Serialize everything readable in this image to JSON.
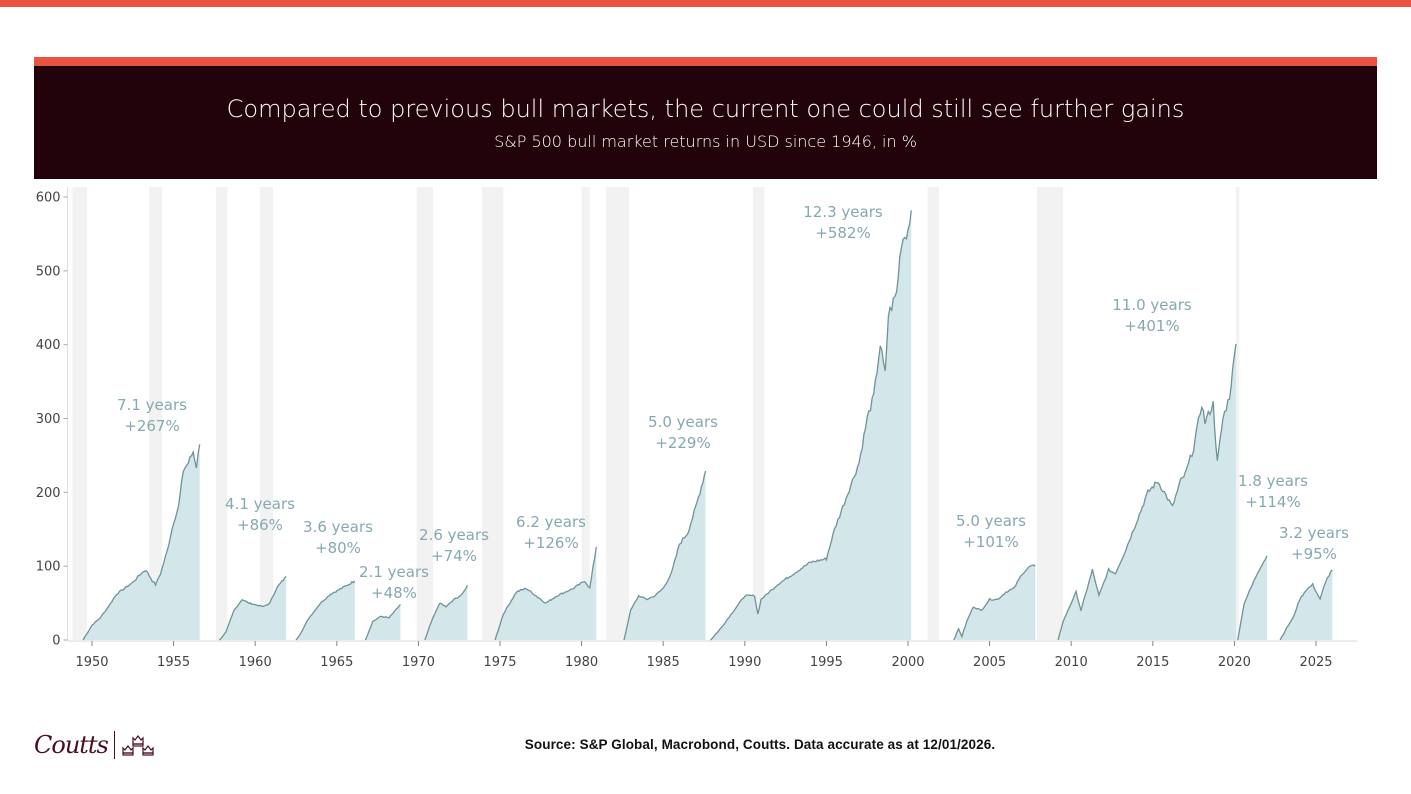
{
  "header": {
    "title": "Compared to previous bull markets, the current one could still see further gains",
    "subtitle": "S&P 500 bull market returns in USD since 1946, in %"
  },
  "footer": {
    "source": "Source: S&P Global, Macrobond, Coutts. Data accurate as at 12/01/2026.",
    "logo_text": "Coutts"
  },
  "colors": {
    "accent_red": "#e8543f",
    "header_bg": "#22030b",
    "area_fill": "#d3e6ea",
    "line": "#6e9399",
    "recession_band": "#f2f2f2",
    "annotation": "#86a8b0",
    "logo": "#4a0f1f"
  },
  "chart_data": {
    "type": "area",
    "title": "Compared to previous bull markets, the current one could still see further gains",
    "subtitle": "S&P 500 bull market returns in USD since 1946, in %",
    "xlabel": "",
    "ylabel": "",
    "xlim": [
      1948.5,
      2027.5
    ],
    "ylim": [
      0,
      620
    ],
    "x_ticks": [
      "1950",
      "1955",
      "1960",
      "1965",
      "1970",
      "1975",
      "1980",
      "1985",
      "1990",
      "1995",
      "2000",
      "2005",
      "2010",
      "2015",
      "2020",
      "2025"
    ],
    "y_ticks": [
      "0",
      "100",
      "200",
      "300",
      "400",
      "500",
      "600"
    ],
    "grid": false,
    "shaded_periods": [
      [
        1948.8,
        1949.7
      ],
      [
        1953.5,
        1954.3
      ],
      [
        1957.6,
        1958.3
      ],
      [
        1960.3,
        1961.1
      ],
      [
        1969.9,
        1970.9
      ],
      [
        1973.9,
        1975.2
      ],
      [
        1980.0,
        1980.5
      ],
      [
        1981.5,
        1982.9
      ],
      [
        1990.5,
        1991.2
      ],
      [
        2001.2,
        2001.9
      ],
      [
        2007.9,
        2009.5
      ],
      [
        2020.1,
        2020.3
      ]
    ],
    "series": [
      {
        "label": "7.1 years",
        "gain": "+267%",
        "points": [
          [
            1949.45,
            0
          ],
          [
            1950,
            20
          ],
          [
            1950.5,
            30
          ],
          [
            1951,
            45
          ],
          [
            1951.5,
            62
          ],
          [
            1952,
            70
          ],
          [
            1952.5,
            78
          ],
          [
            1953,
            90
          ],
          [
            1953.3,
            95
          ],
          [
            1953.7,
            80
          ],
          [
            1953.9,
            75
          ],
          [
            1954.2,
            90
          ],
          [
            1954.6,
            120
          ],
          [
            1955,
            160
          ],
          [
            1955.3,
            180
          ],
          [
            1955.6,
            230
          ],
          [
            1955.9,
            240
          ],
          [
            1956.2,
            255
          ],
          [
            1956.4,
            235
          ],
          [
            1956.6,
            265
          ]
        ]
      },
      {
        "label": "4.1 years",
        "gain": "+86%",
        "points": [
          [
            1957.8,
            0
          ],
          [
            1958.2,
            10
          ],
          [
            1958.7,
            40
          ],
          [
            1959.2,
            55
          ],
          [
            1959.6,
            50
          ],
          [
            1960,
            48
          ],
          [
            1960.5,
            45
          ],
          [
            1960.9,
            50
          ],
          [
            1961.3,
            70
          ],
          [
            1961.9,
            86
          ]
        ]
      },
      {
        "label": "3.6 years",
        "gain": "+80%",
        "points": [
          [
            1962.5,
            0
          ],
          [
            1962.8,
            10
          ],
          [
            1963.3,
            30
          ],
          [
            1964,
            50
          ],
          [
            1964.6,
            62
          ],
          [
            1965.3,
            70
          ],
          [
            1966.1,
            80
          ]
        ]
      },
      {
        "label": "2.1 years",
        "gain": "+48%",
        "points": [
          [
            1966.75,
            0
          ],
          [
            1967.2,
            25
          ],
          [
            1967.7,
            32
          ],
          [
            1968.2,
            30
          ],
          [
            1968.9,
            48
          ]
        ]
      },
      {
        "label": "2.6 years",
        "gain": "+74%",
        "points": [
          [
            1970.4,
            0
          ],
          [
            1970.8,
            25
          ],
          [
            1971.3,
            50
          ],
          [
            1971.7,
            45
          ],
          [
            1972.2,
            55
          ],
          [
            1972.7,
            62
          ],
          [
            1973,
            74
          ]
        ]
      },
      {
        "label": "6.2 years",
        "gain": "+126%",
        "points": [
          [
            1974.7,
            0
          ],
          [
            1975.2,
            35
          ],
          [
            1975.6,
            50
          ],
          [
            1976,
            65
          ],
          [
            1976.6,
            70
          ],
          [
            1977.2,
            60
          ],
          [
            1977.8,
            50
          ],
          [
            1978.5,
            60
          ],
          [
            1979.5,
            70
          ],
          [
            1980.2,
            80
          ],
          [
            1980.5,
            70
          ],
          [
            1980.9,
            126
          ]
        ]
      },
      {
        "label": "5.0 years",
        "gain": "+229%",
        "points": [
          [
            1982.6,
            0
          ],
          [
            1983,
            40
          ],
          [
            1983.5,
            60
          ],
          [
            1984,
            55
          ],
          [
            1984.5,
            60
          ],
          [
            1985,
            70
          ],
          [
            1985.5,
            90
          ],
          [
            1986,
            130
          ],
          [
            1986.5,
            145
          ],
          [
            1987,
            180
          ],
          [
            1987.6,
            229
          ]
        ]
      },
      {
        "label": "12.3 years",
        "gain": "+582%",
        "points": [
          [
            1987.9,
            0
          ],
          [
            1988.5,
            15
          ],
          [
            1989.5,
            45
          ],
          [
            1990,
            60
          ],
          [
            1990.6,
            60
          ],
          [
            1990.8,
            35
          ],
          [
            1991,
            55
          ],
          [
            1992,
            75
          ],
          [
            1993,
            90
          ],
          [
            1994,
            105
          ],
          [
            1995,
            110
          ],
          [
            1995.5,
            150
          ],
          [
            1996,
            180
          ],
          [
            1996.5,
            210
          ],
          [
            1997,
            240
          ],
          [
            1997.5,
            300
          ],
          [
            1997.9,
            330
          ],
          [
            1998.3,
            400
          ],
          [
            1998.6,
            360
          ],
          [
            1998.8,
            440
          ],
          [
            1999.3,
            470
          ],
          [
            1999.6,
            540
          ],
          [
            2000,
            555
          ],
          [
            2000.2,
            582
          ]
        ]
      },
      {
        "label": "5.0 years",
        "gain": "+101%",
        "points": [
          [
            2002.8,
            0
          ],
          [
            2003.1,
            15
          ],
          [
            2003.3,
            5
          ],
          [
            2003.6,
            25
          ],
          [
            2004,
            45
          ],
          [
            2004.5,
            40
          ],
          [
            2005,
            55
          ],
          [
            2005.5,
            55
          ],
          [
            2006,
            65
          ],
          [
            2006.5,
            70
          ],
          [
            2007,
            90
          ],
          [
            2007.5,
            100
          ],
          [
            2007.8,
            100
          ]
        ]
      },
      {
        "label": "11.0 years",
        "gain": "+401%",
        "points": [
          [
            2009.2,
            0
          ],
          [
            2009.5,
            25
          ],
          [
            2010.3,
            65
          ],
          [
            2010.6,
            40
          ],
          [
            2011.3,
            95
          ],
          [
            2011.7,
            60
          ],
          [
            2012.3,
            95
          ],
          [
            2012.7,
            90
          ],
          [
            2013.3,
            120
          ],
          [
            2014,
            160
          ],
          [
            2014.7,
            200
          ],
          [
            2015.3,
            215
          ],
          [
            2015.7,
            200
          ],
          [
            2016.2,
            180
          ],
          [
            2016.7,
            215
          ],
          [
            2017,
            225
          ],
          [
            2017.5,
            260
          ],
          [
            2018,
            320
          ],
          [
            2018.2,
            295
          ],
          [
            2018.7,
            320
          ],
          [
            2018.95,
            240
          ],
          [
            2019.3,
            300
          ],
          [
            2019.7,
            330
          ],
          [
            2020.1,
            401
          ]
        ]
      },
      {
        "label": "1.8 years",
        "gain": "+114%",
        "points": [
          [
            2020.2,
            0
          ],
          [
            2020.6,
            50
          ],
          [
            2021,
            70
          ],
          [
            2021.5,
            95
          ],
          [
            2022,
            114
          ]
        ]
      },
      {
        "label": "3.2 years",
        "gain": "+95%",
        "points": [
          [
            2022.8,
            0
          ],
          [
            2023.3,
            20
          ],
          [
            2023.6,
            30
          ],
          [
            2024,
            55
          ],
          [
            2024.4,
            68
          ],
          [
            2024.8,
            75
          ],
          [
            2025.25,
            55
          ],
          [
            2025.6,
            80
          ],
          [
            2026,
            95
          ]
        ]
      }
    ]
  }
}
